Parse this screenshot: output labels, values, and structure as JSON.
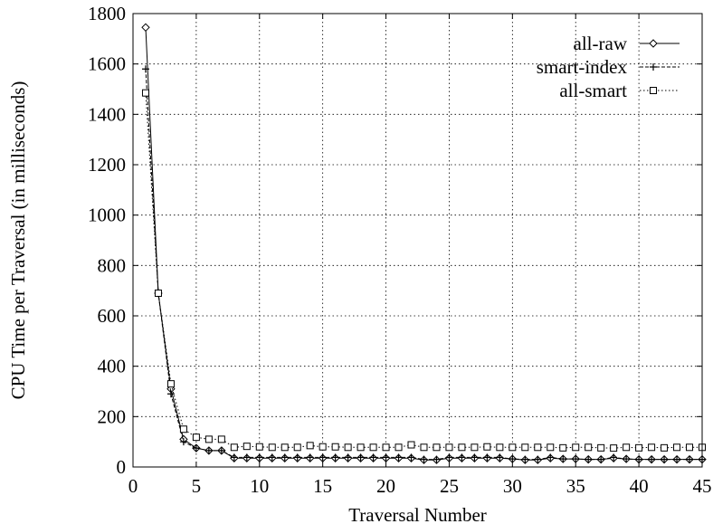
{
  "chart_data": {
    "type": "line",
    "title": "",
    "xlabel": "Traversal Number",
    "ylabel": "CPU Time per Traversal (in milliseconds)",
    "xlim": [
      0,
      45
    ],
    "ylim": [
      0,
      1800
    ],
    "xticks": [
      0,
      5,
      10,
      15,
      20,
      25,
      30,
      35,
      40,
      45
    ],
    "yticks": [
      0,
      200,
      400,
      600,
      800,
      1000,
      1200,
      1400,
      1600,
      1800
    ],
    "grid": true,
    "legend_position": "top-right",
    "x": [
      1,
      2,
      3,
      4,
      5,
      6,
      7,
      8,
      9,
      10,
      11,
      12,
      13,
      14,
      15,
      16,
      17,
      18,
      19,
      20,
      21,
      22,
      23,
      24,
      25,
      26,
      27,
      28,
      29,
      30,
      31,
      32,
      33,
      34,
      35,
      36,
      37,
      38,
      39,
      40,
      41,
      42,
      43,
      44,
      45
    ],
    "series": [
      {
        "name": "all-raw",
        "marker": "diamond",
        "line": "solid",
        "values": [
          1745,
          690,
          310,
          110,
          75,
          65,
          65,
          35,
          35,
          35,
          35,
          35,
          35,
          35,
          35,
          35,
          35,
          35,
          35,
          35,
          35,
          35,
          28,
          28,
          35,
          35,
          35,
          35,
          35,
          32,
          28,
          28,
          35,
          32,
          32,
          30,
          30,
          35,
          32,
          30,
          30,
          30,
          30,
          30,
          30
        ]
      },
      {
        "name": "smart-index",
        "marker": "plus",
        "line": "dashed",
        "values": [
          1580,
          690,
          290,
          100,
          75,
          65,
          65,
          38,
          38,
          38,
          38,
          38,
          38,
          38,
          38,
          38,
          38,
          38,
          38,
          38,
          38,
          38,
          30,
          30,
          38,
          38,
          38,
          38,
          38,
          32,
          30,
          30,
          38,
          32,
          32,
          30,
          30,
          38,
          32,
          30,
          30,
          30,
          30,
          30,
          30
        ]
      },
      {
        "name": "all-smart",
        "marker": "square",
        "line": "dotted",
        "values": [
          1485,
          690,
          330,
          150,
          118,
          110,
          110,
          78,
          82,
          80,
          78,
          78,
          78,
          85,
          80,
          80,
          78,
          78,
          78,
          78,
          78,
          88,
          78,
          78,
          78,
          78,
          78,
          80,
          78,
          78,
          78,
          78,
          78,
          76,
          78,
          78,
          76,
          75,
          78,
          76,
          78,
          76,
          78,
          78,
          78
        ]
      }
    ]
  }
}
